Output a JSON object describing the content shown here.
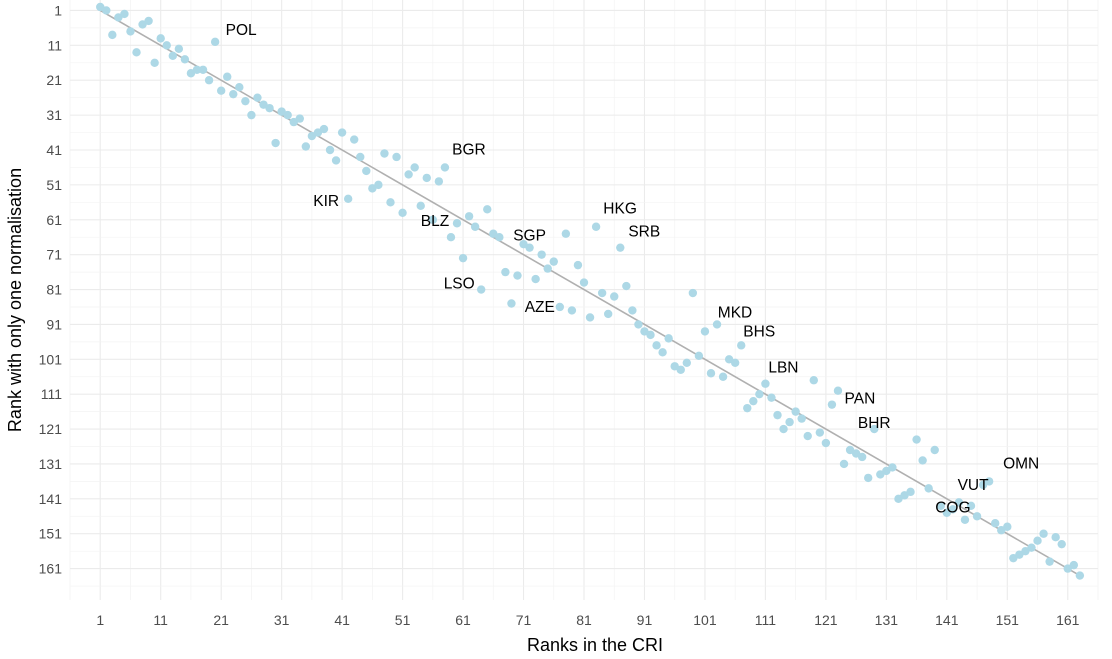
{
  "chart_data": {
    "type": "scatter",
    "title": "",
    "xlabel": "Ranks in the CRI",
    "ylabel": "Rank with only one normalisation",
    "xlim": [
      -4,
      166
    ],
    "ylim": [
      -2,
      170
    ],
    "y_reversed": true,
    "grid": true,
    "x_ticks": [
      1,
      11,
      21,
      31,
      41,
      51,
      61,
      71,
      81,
      91,
      101,
      111,
      121,
      131,
      141,
      151,
      161
    ],
    "y_ticks": [
      1,
      11,
      21,
      31,
      41,
      51,
      61,
      71,
      81,
      91,
      101,
      111,
      121,
      131,
      141,
      151,
      161
    ],
    "colors": {
      "points": "#ADD8E6",
      "fit_line": "#B0B0B0",
      "grid": "#EBEBEB"
    },
    "fit_line": {
      "from": [
        1,
        1
      ],
      "to": [
        163,
        163
      ]
    },
    "points": [
      [
        1,
        0
      ],
      [
        2,
        1
      ],
      [
        3,
        8
      ],
      [
        4,
        3
      ],
      [
        5,
        2
      ],
      [
        6,
        7
      ],
      [
        7,
        13
      ],
      [
        8,
        5
      ],
      [
        9,
        4
      ],
      [
        10,
        16
      ],
      [
        11,
        9
      ],
      [
        12,
        11
      ],
      [
        13,
        14
      ],
      [
        14,
        12
      ],
      [
        15,
        15
      ],
      [
        16,
        19
      ],
      [
        17,
        18
      ],
      [
        18,
        18
      ],
      [
        19,
        21
      ],
      [
        20,
        10
      ],
      [
        21,
        24
      ],
      [
        22,
        20
      ],
      [
        23,
        25
      ],
      [
        24,
        23
      ],
      [
        25,
        27
      ],
      [
        26,
        31
      ],
      [
        27,
        26
      ],
      [
        28,
        28
      ],
      [
        29,
        29
      ],
      [
        30,
        39
      ],
      [
        31,
        30
      ],
      [
        32,
        31
      ],
      [
        33,
        33
      ],
      [
        34,
        32
      ],
      [
        35,
        40
      ],
      [
        36,
        37
      ],
      [
        37,
        36
      ],
      [
        38,
        35
      ],
      [
        39,
        41
      ],
      [
        40,
        44
      ],
      [
        41,
        36
      ],
      [
        42,
        55
      ],
      [
        43,
        38
      ],
      [
        44,
        43
      ],
      [
        45,
        47
      ],
      [
        46,
        52
      ],
      [
        47,
        51
      ],
      [
        48,
        42
      ],
      [
        49,
        56
      ],
      [
        50,
        43
      ],
      [
        51,
        59
      ],
      [
        52,
        48
      ],
      [
        53,
        46
      ],
      [
        54,
        57
      ],
      [
        55,
        49
      ],
      [
        56,
        61
      ],
      [
        57,
        50
      ],
      [
        58,
        46
      ],
      [
        59,
        66
      ],
      [
        60,
        62
      ],
      [
        61,
        72
      ],
      [
        62,
        60
      ],
      [
        63,
        63
      ],
      [
        64,
        81
      ],
      [
        65,
        58
      ],
      [
        66,
        65
      ],
      [
        67,
        66
      ],
      [
        68,
        76
      ],
      [
        69,
        85
      ],
      [
        70,
        77
      ],
      [
        71,
        68
      ],
      [
        72,
        69
      ],
      [
        73,
        78
      ],
      [
        74,
        71
      ],
      [
        75,
        75
      ],
      [
        76,
        73
      ],
      [
        77,
        86
      ],
      [
        78,
        65
      ],
      [
        79,
        87
      ],
      [
        80,
        74
      ],
      [
        81,
        79
      ],
      [
        82,
        89
      ],
      [
        83,
        63
      ],
      [
        84,
        82
      ],
      [
        85,
        88
      ],
      [
        86,
        83
      ],
      [
        87,
        69
      ],
      [
        88,
        80
      ],
      [
        89,
        87
      ],
      [
        90,
        91
      ],
      [
        91,
        93
      ],
      [
        92,
        94
      ],
      [
        93,
        97
      ],
      [
        94,
        99
      ],
      [
        95,
        95
      ],
      [
        96,
        103
      ],
      [
        97,
        104
      ],
      [
        98,
        102
      ],
      [
        99,
        82
      ],
      [
        100,
        100
      ],
      [
        101,
        93
      ],
      [
        102,
        105
      ],
      [
        103,
        91
      ],
      [
        104,
        106
      ],
      [
        105,
        101
      ],
      [
        106,
        102
      ],
      [
        107,
        97
      ],
      [
        108,
        115
      ],
      [
        109,
        113
      ],
      [
        110,
        111
      ],
      [
        111,
        108
      ],
      [
        112,
        112
      ],
      [
        113,
        117
      ],
      [
        114,
        121
      ],
      [
        115,
        119
      ],
      [
        116,
        116
      ],
      [
        117,
        118
      ],
      [
        118,
        123
      ],
      [
        119,
        107
      ],
      [
        120,
        122
      ],
      [
        121,
        125
      ],
      [
        122,
        114
      ],
      [
        123,
        110
      ],
      [
        124,
        131
      ],
      [
        125,
        127
      ],
      [
        126,
        128
      ],
      [
        127,
        129
      ],
      [
        128,
        135
      ],
      [
        129,
        121
      ],
      [
        130,
        134
      ],
      [
        131,
        133
      ],
      [
        132,
        132
      ],
      [
        133,
        141
      ],
      [
        134,
        140
      ],
      [
        135,
        139
      ],
      [
        136,
        124
      ],
      [
        137,
        130
      ],
      [
        138,
        138
      ],
      [
        139,
        127
      ],
      [
        140,
        143
      ],
      [
        141,
        145
      ],
      [
        142,
        144
      ],
      [
        143,
        142
      ],
      [
        144,
        147
      ],
      [
        145,
        143
      ],
      [
        146,
        146
      ],
      [
        147,
        137
      ],
      [
        148,
        136
      ],
      [
        149,
        148
      ],
      [
        150,
        150
      ],
      [
        151,
        149
      ],
      [
        152,
        158
      ],
      [
        153,
        157
      ],
      [
        154,
        156
      ],
      [
        155,
        155
      ],
      [
        156,
        153
      ],
      [
        157,
        151
      ],
      [
        158,
        159
      ],
      [
        159,
        152
      ],
      [
        160,
        154
      ],
      [
        161,
        161
      ],
      [
        162,
        160
      ],
      [
        163,
        163
      ]
    ],
    "labels": [
      {
        "text": "POL",
        "x": 20,
        "y": 10
      },
      {
        "text": "BGR",
        "x": 58,
        "y": 46
      },
      {
        "text": "KIR",
        "x": 42,
        "y": 55
      },
      {
        "text": "HKG",
        "x": 83,
        "y": 63
      },
      {
        "text": "BLZ",
        "x": 59,
        "y": 66
      },
      {
        "text": "SGP",
        "x": 72,
        "y": 69
      },
      {
        "text": "SRB",
        "x": 87,
        "y": 69
      },
      {
        "text": "LSO",
        "x": 64,
        "y": 81
      },
      {
        "text": "AZE",
        "x": 77,
        "y": 86
      },
      {
        "text": "MKD",
        "x": 103,
        "y": 91
      },
      {
        "text": "BHS",
        "x": 107,
        "y": 97
      },
      {
        "text": "LBN",
        "x": 111,
        "y": 108
      },
      {
        "text": "PAN",
        "x": 122,
        "y": 114
      },
      {
        "text": "BHR",
        "x": 129,
        "y": 121
      },
      {
        "text": "VUT",
        "x": 147,
        "y": 137
      },
      {
        "text": "OMN",
        "x": 148,
        "y": 136
      },
      {
        "text": "COG",
        "x": 142,
        "y": 144
      }
    ]
  }
}
